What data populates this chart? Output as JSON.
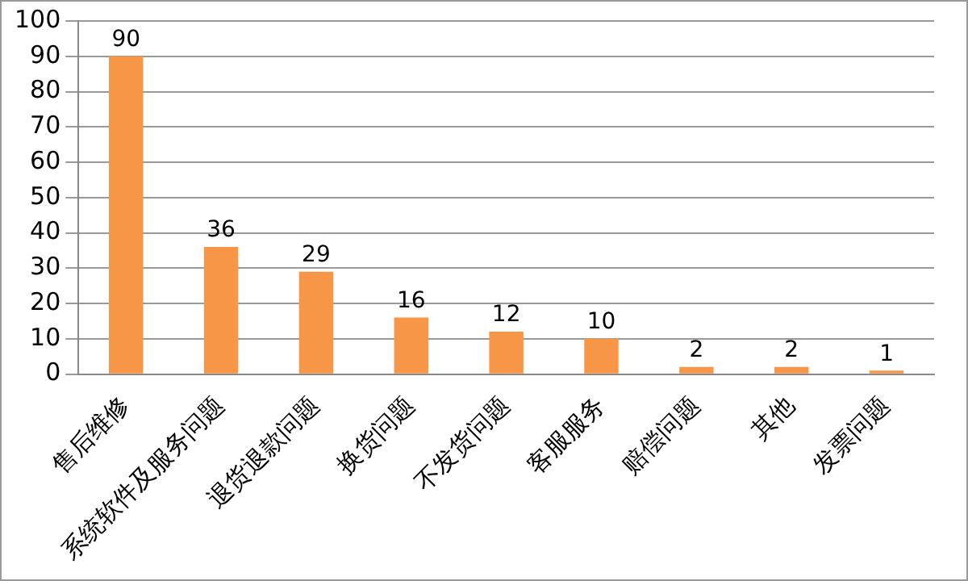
{
  "chart_data": {
    "type": "bar",
    "categories": [
      "售后维修",
      "系统软件及服务问题",
      "退货退款问题",
      "换货问题",
      "不发货问题",
      "客服服务",
      "赔偿问题",
      "其他",
      "发票问题"
    ],
    "values": [
      90,
      36,
      29,
      16,
      12,
      10,
      2,
      2,
      1
    ],
    "color": "#f79646",
    "ylim": [
      0,
      100
    ],
    "yticks": [
      0,
      10,
      20,
      30,
      40,
      50,
      60,
      70,
      80,
      90,
      100
    ],
    "grid": "y",
    "data_labels": true
  }
}
